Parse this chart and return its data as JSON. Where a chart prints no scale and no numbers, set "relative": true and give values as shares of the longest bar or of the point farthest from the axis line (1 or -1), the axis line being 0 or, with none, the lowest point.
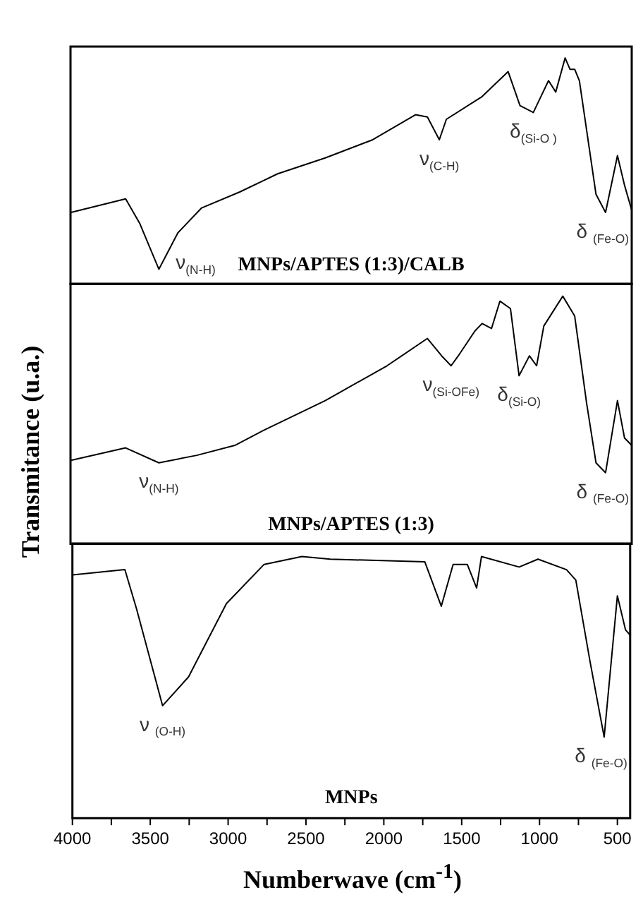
{
  "chart_data": [
    {
      "type": "line",
      "relative": true,
      "tick_labels": false,
      "xlim": [
        4000,
        418
      ],
      "marker": "none",
      "line_style": "solid",
      "series": [
        {
          "color": "#000000",
          "x": [
            3997,
            3648,
            3557,
            3436,
            3315,
            3163,
            2920,
            2678,
            2374,
            2071,
            1798,
            1722,
            1646,
            1601,
            1373,
            1207,
            1131,
            1046,
            949,
            903,
            843,
            812,
            782,
            752,
            646,
            585,
            509,
            464,
            418
          ],
          "values": [
            0.32,
            0.38,
            0.27,
            0.07,
            0.23,
            0.34,
            0.41,
            0.49,
            0.56,
            0.64,
            0.75,
            0.74,
            0.64,
            0.73,
            0.83,
            0.94,
            0.79,
            0.76,
            0.9,
            0.85,
            1.0,
            0.95,
            0.95,
            0.9,
            0.4,
            0.32,
            0.57,
            0.44,
            0.33
          ]
        }
      ],
      "annotations": [
        {
          "text": "ν$_{(N-H)}$",
          "x": 3436,
          "y": 0.07
        },
        {
          "text": "ν$_{(C-H)}$",
          "x": 1646,
          "y": 0.64
        },
        {
          "text": "δ$_{(Si-O )}$",
          "x": 1046,
          "y": 0.76
        },
        {
          "text": "δ $_{(Fe-O)}$",
          "x": 585,
          "y": 0.32
        },
        "MNPs/APTES (1:3)/CALB"
      ]
    },
    {
      "type": "line",
      "relative": true,
      "tick_labels": false,
      "xlim": [
        4000,
        418
      ],
      "marker": "none",
      "line_style": "solid",
      "ylabel": "Transmitance (u.a.)",
      "series": [
        {
          "color": "#000000",
          "x": [
            3997,
            3648,
            3436,
            3194,
            2951,
            2769,
            2374,
            1980,
            1722,
            1631,
            1571,
            1525,
            1419,
            1373,
            1313,
            1259,
            1192,
            1137,
            1071,
            1025,
            979,
            858,
            782,
            706,
            646,
            585,
            509,
            464,
            418
          ],
          "values": [
            0.34,
            0.39,
            0.33,
            0.36,
            0.4,
            0.46,
            0.58,
            0.72,
            0.83,
            0.76,
            0.72,
            0.76,
            0.86,
            0.89,
            0.87,
            0.98,
            0.95,
            0.68,
            0.76,
            0.72,
            0.88,
            1.0,
            0.92,
            0.57,
            0.33,
            0.29,
            0.58,
            0.43,
            0.4
          ]
        }
      ],
      "annotations": [
        {
          "text": "ν$_{(N-H)}$",
          "x": 3436,
          "y": 0.33
        },
        {
          "text": "ν$_{(Si-OFe)}$",
          "x": 1571,
          "y": 0.72
        },
        {
          "text": "δ$_{(Si-O)}$",
          "x": 1137,
          "y": 0.68
        },
        {
          "text": "δ $_{(Fe-O)}$",
          "x": 585,
          "y": 0.29
        },
        "MNPs/APTES (1:3)"
      ]
    },
    {
      "type": "line",
      "relative": true,
      "xlim": [
        4000,
        418
      ],
      "marker": "none",
      "line_style": "solid",
      "xlabel": "Numberwave (cm$^{-1}$)",
      "xticks": [
        4000,
        {
          "value": 3750,
          "label": null
        },
        3500,
        {
          "value": 3250,
          "label": null
        },
        3000,
        {
          "value": 2750,
          "label": null
        },
        2500,
        {
          "value": 2250,
          "label": null
        },
        2000,
        {
          "value": 1750,
          "label": null
        },
        1500,
        {
          "value": 1250,
          "label": null
        },
        1000,
        {
          "value": 750,
          "label": null
        },
        500
      ],
      "series": [
        {
          "color": "#000000",
          "x": [
            3997,
            3663,
            3588,
            3421,
            3254,
            3011,
            2769,
            2526,
            2344,
            1737,
            1631,
            1555,
            1464,
            1404,
            1373,
            1131,
            1010,
            827,
            767,
            676,
            585,
            500,
            448,
            418
          ],
          "values": [
            0.93,
            0.95,
            0.8,
            0.43,
            0.54,
            0.82,
            0.97,
            1.0,
            0.99,
            0.98,
            0.81,
            0.97,
            0.97,
            0.88,
            1.0,
            0.96,
            0.99,
            0.95,
            0.91,
            0.6,
            0.31,
            0.85,
            0.72,
            0.7
          ]
        }
      ],
      "annotations": [
        {
          "text": "ν $_{(O-H)}$",
          "x": 3421,
          "y": 0.43
        },
        {
          "text": "δ $_{(Fe-O)}$",
          "x": 585,
          "y": 0.31
        },
        "MNPs"
      ]
    }
  ]
}
